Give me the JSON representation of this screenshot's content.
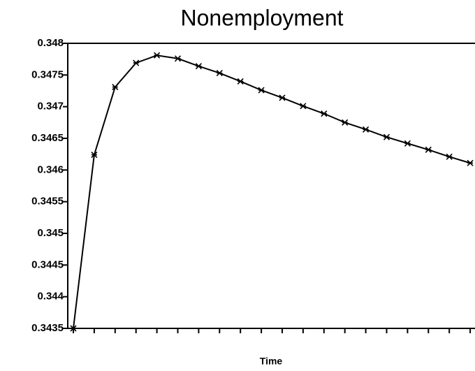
{
  "chart_data": {
    "type": "line",
    "title": "Nonemployment",
    "x_label": "Time",
    "categories": [
      null,
      null,
      null,
      null,
      null,
      null,
      null,
      null,
      null,
      null,
      null,
      null,
      null,
      null,
      null,
      null,
      null,
      null,
      null,
      null
    ],
    "series": [
      {
        "name": "Nonemployment",
        "color": "#000000",
        "values": [
          0.3435,
          0.34624,
          0.34731,
          0.34769,
          0.34781,
          0.34776,
          0.34764,
          0.34753,
          0.3474,
          0.34726,
          0.34714,
          0.34701,
          0.34689,
          0.34675,
          0.34664,
          0.34652,
          0.34642,
          0.34632,
          0.34621,
          0.34611
        ]
      }
    ],
    "ylim": [
      0.3435,
      0.348
    ],
    "yticks": [
      0.3435,
      0.344,
      0.3445,
      0.345,
      0.3455,
      0.346,
      0.3465,
      0.347,
      0.3475,
      0.348
    ]
  }
}
